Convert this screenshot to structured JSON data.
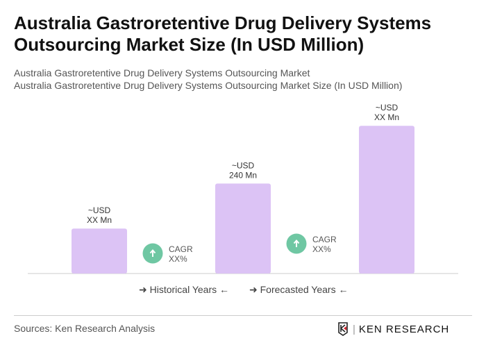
{
  "title": "Australia Gastroretentive Drug Delivery Systems Outsourcing Market Size (In USD Million)",
  "subtitle1": "Australia Gastroretentive Drug Delivery Systems Outsourcing Market",
  "subtitle2": "Australia Gastroretentive Drug Delivery Systems Outsourcing Market Size (In USD Million)",
  "chart_data": {
    "type": "bar",
    "values": [
      120,
      240,
      394
    ],
    "bar_labels": [
      [
        "~USD",
        "XX Mn"
      ],
      [
        "~USD",
        "240 Mn"
      ],
      [
        "~USD",
        "XX Mn"
      ]
    ],
    "cagr": [
      {
        "line1": "CAGR",
        "line2": "XX%"
      },
      {
        "line1": "CAGR",
        "line2": "XX%"
      }
    ],
    "bar_color": "#dcc3f5",
    "cagr_color": "#6fc7a3",
    "legend": [
      "Historical Years",
      "Forecasted Years"
    ]
  },
  "sources": "Sources: Ken Research Analysis",
  "logo_text": "KEN RESEARCH"
}
